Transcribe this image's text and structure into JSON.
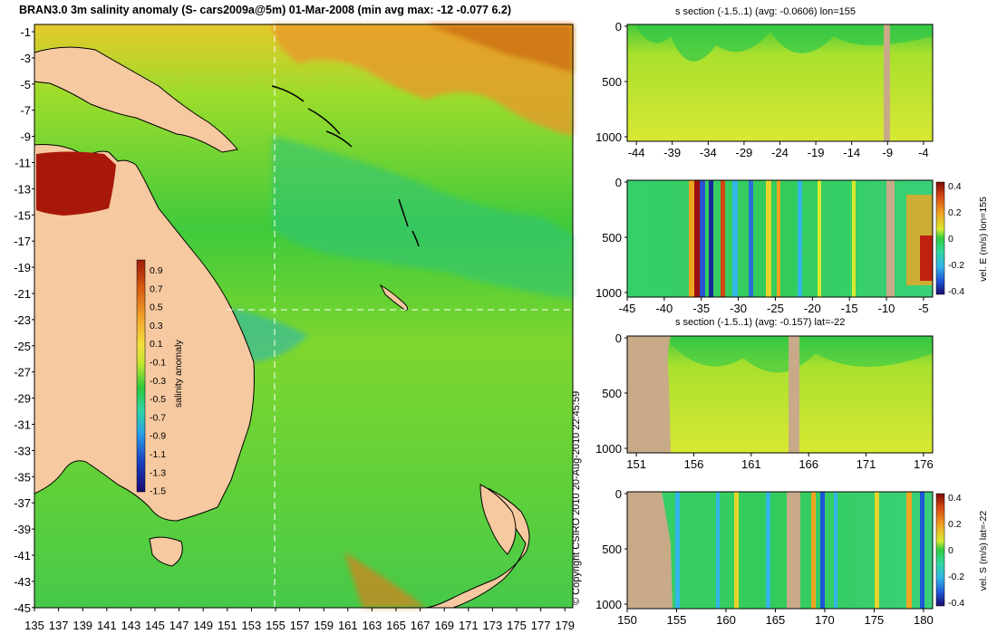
{
  "title": "BRAN3.0 3m salinity anomaly (S- cars2009a@5m) 01-Mar-2008 (min avg max: -12 -0.077 6.2)",
  "copyright": "© Copyright CSIRO 2010   20-Aug-2010 22:45:59",
  "colors": {
    "land": "#f7c9a0",
    "section_land": "#c8aa88",
    "salinity_scale": [
      "#1b0b72",
      "#1a3fc0",
      "#2a9ee6",
      "#2fd7a8",
      "#24c83a",
      "#c7ea2a",
      "#f2e13a",
      "#f29b22",
      "#d95a12",
      "#9d1b05"
    ],
    "velocity_scale": [
      "#1a0a6a",
      "#1e56d8",
      "#33b6e8",
      "#2fd9a0",
      "#2fcf43",
      "#d8ea2c",
      "#f0a422",
      "#d44514",
      "#7c0a04"
    ]
  },
  "map": {
    "lat_ticks": [
      "-1",
      "-3",
      "-5",
      "-7",
      "-9",
      "-11",
      "-13",
      "-15",
      "-17",
      "-19",
      "-21",
      "-23",
      "-25",
      "-27",
      "-29",
      "-31",
      "-33",
      "-35",
      "-37",
      "-39",
      "-41",
      "-43",
      "-45"
    ],
    "lon_ticks": [
      "135",
      "137",
      "139",
      "141",
      "143",
      "145",
      "147",
      "149",
      "151",
      "153",
      "155",
      "157",
      "159",
      "161",
      "163",
      "165",
      "167",
      "169",
      "171",
      "173",
      "175",
      "177",
      "179"
    ],
    "crosshair_lon": 155,
    "crosshair_lat": -22,
    "colorbar": {
      "label": "salinity anomaly",
      "ticks": [
        "0.9",
        "0.7",
        "0.5",
        "0.3",
        "0.1",
        "-0.1",
        "-0.3",
        "-0.5",
        "-0.7",
        "-0.9",
        "-1.1",
        "-1.3",
        "-1.5"
      ]
    }
  },
  "panels": [
    {
      "title": "s section (-1.5..1) (avg: -0.0606) lon=155",
      "y_ticks": [
        "0",
        "500",
        "1000"
      ],
      "x_ticks": [
        "-44",
        "-39",
        "-34",
        "-29",
        "-24",
        "-19",
        "-14",
        "-9",
        "-4"
      ],
      "cb_label": "",
      "cb_ticks": []
    },
    {
      "title": "",
      "y_ticks": [
        "0",
        "500",
        "1000"
      ],
      "x_ticks": [
        "-45",
        "-40",
        "-35",
        "-30",
        "-25",
        "-20",
        "-15",
        "-10",
        "-5"
      ],
      "cb_label": "vel. E (m/s) lon=155",
      "cb_ticks": [
        "0.4",
        "0.2",
        "0",
        "-0.2",
        "-0.4"
      ]
    },
    {
      "title": "s section (-1.5..1) (avg: -0.157) lat=-22",
      "y_ticks": [
        "0",
        "500",
        "1000"
      ],
      "x_ticks": [
        "151",
        "156",
        "161",
        "166",
        "171",
        "176"
      ],
      "cb_label": "",
      "cb_ticks": []
    },
    {
      "title": "",
      "y_ticks": [
        "0",
        "500",
        "1000"
      ],
      "x_ticks": [
        "150",
        "155",
        "160",
        "165",
        "170",
        "175",
        "180"
      ],
      "cb_label": "vel. S (m/s) lat=-22",
      "cb_ticks": [
        "0.4",
        "0.2",
        "0",
        "-0.2",
        "-0.4"
      ]
    }
  ]
}
